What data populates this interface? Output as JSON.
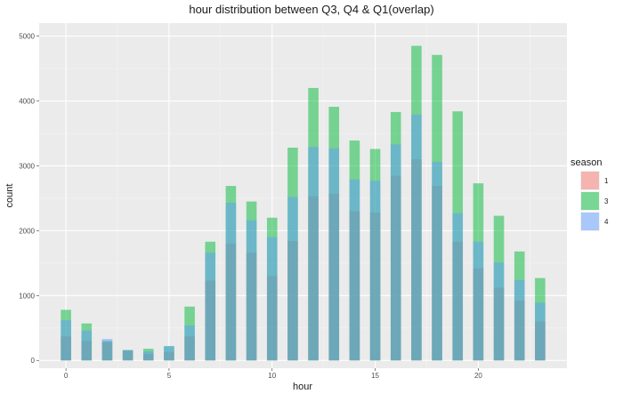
{
  "chart_data": {
    "type": "bar",
    "title": "hour distribution between Q3, Q4 & Q1(overlap)",
    "xlabel": "hour",
    "ylabel": "count",
    "x": [
      0,
      1,
      2,
      3,
      4,
      5,
      6,
      7,
      8,
      9,
      10,
      11,
      12,
      13,
      14,
      15,
      16,
      17,
      18,
      19,
      20,
      21,
      22,
      23
    ],
    "xlim": [
      -1.3,
      24.3
    ],
    "ylim": [
      -120,
      5200
    ],
    "xticks": [
      0,
      5,
      10,
      15,
      20
    ],
    "yticks": [
      0,
      1000,
      2000,
      3000,
      4000,
      5000
    ],
    "grid": true,
    "overlap": true,
    "legend": {
      "title": "season",
      "position": "right"
    },
    "series": [
      {
        "name": "1",
        "color": "#F8766D",
        "values": [
          370,
          300,
          280,
          150,
          100,
          130,
          370,
          1230,
          1800,
          1660,
          1300,
          1840,
          2530,
          2570,
          2300,
          2280,
          2850,
          3100,
          2690,
          1830,
          1420,
          1120,
          920,
          600
        ]
      },
      {
        "name": "3",
        "color": "#00BA38",
        "values": [
          780,
          570,
          300,
          160,
          180,
          220,
          830,
          1830,
          2690,
          2450,
          2200,
          3280,
          4200,
          3910,
          3390,
          3260,
          3830,
          4850,
          4710,
          3840,
          2730,
          2230,
          1680,
          1270
        ]
      },
      {
        "name": "4",
        "color": "#619CFF",
        "values": [
          620,
          460,
          330,
          160,
          140,
          220,
          540,
          1660,
          2430,
          2160,
          1900,
          2520,
          3290,
          3270,
          2790,
          2770,
          3330,
          3790,
          3060,
          2270,
          1830,
          1510,
          1240,
          890
        ]
      }
    ]
  }
}
